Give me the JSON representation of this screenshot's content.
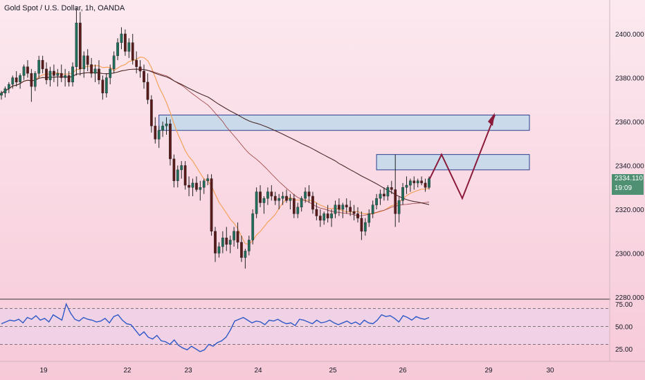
{
  "chart_data": {
    "title": "Gold Spot / U.S. Dollar, 1h, OANDA",
    "type": "candlestick",
    "price_axis": {
      "ticks": [
        "2400.000",
        "2380.000",
        "2360.000",
        "2340.000",
        "2320.000",
        "2300.000",
        "2280.000"
      ],
      "ylim": [
        2280,
        2412
      ]
    },
    "time_axis": {
      "ticks": [
        "19",
        "22",
        "23",
        "24",
        "25",
        "26",
        "29",
        "30"
      ]
    },
    "last_price": {
      "value": "2334.110",
      "countdown": "19:09"
    },
    "zones": [
      {
        "name": "upper-supply-zone",
        "from": 2356,
        "to": 2363
      },
      {
        "name": "lower-supply-zone",
        "from": 2338,
        "to": 2345
      }
    ],
    "projection": [
      2334,
      2345,
      2325,
      2363
    ],
    "rsi": {
      "ticks": [
        "75.00",
        "50.00",
        "25.00"
      ],
      "levels": [
        70,
        50,
        30
      ],
      "values": [
        53,
        55,
        57,
        56,
        58,
        54,
        60,
        58,
        62,
        57,
        59,
        55,
        63,
        60,
        57,
        75,
        65,
        58,
        56,
        60,
        58,
        57,
        55,
        56,
        59,
        54,
        61,
        63,
        57,
        53,
        52,
        46,
        40,
        44,
        38,
        36,
        40,
        34,
        33,
        30,
        35,
        29,
        26,
        24,
        28,
        25,
        22,
        24,
        30,
        28,
        32,
        34,
        38,
        46,
        56,
        58,
        60,
        57,
        54,
        56,
        55,
        52,
        57,
        56,
        58,
        55,
        53,
        54,
        51,
        58,
        57,
        55,
        53,
        57,
        54,
        55,
        57,
        54,
        52,
        54,
        56,
        53,
        55,
        52,
        57,
        54,
        53,
        57,
        63,
        61,
        62,
        59,
        55,
        62,
        60,
        57,
        61,
        59,
        58,
        60
      ]
    },
    "candles": [
      [
        2372,
        2374,
        2370,
        2373
      ],
      [
        2373,
        2376,
        2371,
        2375
      ],
      [
        2375,
        2378,
        2373,
        2377
      ],
      [
        2377,
        2381,
        2375,
        2380
      ],
      [
        2380,
        2383,
        2376,
        2378
      ],
      [
        2378,
        2382,
        2375,
        2381
      ],
      [
        2381,
        2386,
        2379,
        2385
      ],
      [
        2385,
        2388,
        2380,
        2382
      ],
      [
        2382,
        2384,
        2369,
        2376
      ],
      [
        2376,
        2383,
        2374,
        2382
      ],
      [
        2382,
        2390,
        2380,
        2388
      ],
      [
        2388,
        2390,
        2382,
        2384
      ],
      [
        2384,
        2387,
        2377,
        2379
      ],
      [
        2379,
        2385,
        2376,
        2383
      ],
      [
        2383,
        2386,
        2378,
        2381
      ],
      [
        2381,
        2384,
        2376,
        2382
      ],
      [
        2382,
        2386,
        2378,
        2380
      ],
      [
        2380,
        2384,
        2376,
        2381
      ],
      [
        2381,
        2383,
        2376,
        2378
      ],
      [
        2378,
        2387,
        2376,
        2385
      ],
      [
        2385,
        2412,
        2381,
        2405
      ],
      [
        2405,
        2410,
        2381,
        2384
      ],
      [
        2384,
        2392,
        2380,
        2390
      ],
      [
        2390,
        2393,
        2383,
        2386
      ],
      [
        2386,
        2389,
        2380,
        2382
      ],
      [
        2382,
        2386,
        2378,
        2384
      ],
      [
        2384,
        2388,
        2377,
        2379
      ],
      [
        2379,
        2381,
        2370,
        2373
      ],
      [
        2373,
        2382,
        2371,
        2380
      ],
      [
        2380,
        2386,
        2377,
        2384
      ],
      [
        2384,
        2392,
        2382,
        2390
      ],
      [
        2390,
        2398,
        2388,
        2396
      ],
      [
        2396,
        2403,
        2393,
        2400
      ],
      [
        2400,
        2402,
        2390,
        2392
      ],
      [
        2392,
        2398,
        2389,
        2396
      ],
      [
        2396,
        2400,
        2386,
        2388
      ],
      [
        2388,
        2392,
        2382,
        2385
      ],
      [
        2385,
        2388,
        2380,
        2383
      ],
      [
        2383,
        2386,
        2375,
        2378
      ],
      [
        2378,
        2382,
        2368,
        2370
      ],
      [
        2370,
        2372,
        2355,
        2358
      ],
      [
        2358,
        2362,
        2350,
        2352
      ],
      [
        2352,
        2358,
        2348,
        2356
      ],
      [
        2356,
        2360,
        2353,
        2358
      ],
      [
        2358,
        2362,
        2354,
        2359
      ],
      [
        2359,
        2361,
        2340,
        2343
      ],
      [
        2343,
        2345,
        2330,
        2333
      ],
      [
        2333,
        2340,
        2330,
        2338
      ],
      [
        2338,
        2342,
        2334,
        2340
      ],
      [
        2340,
        2342,
        2329,
        2331
      ],
      [
        2331,
        2335,
        2326,
        2330
      ],
      [
        2330,
        2334,
        2326,
        2332
      ],
      [
        2332,
        2335,
        2328,
        2329
      ],
      [
        2329,
        2333,
        2324,
        2330
      ],
      [
        2330,
        2334,
        2327,
        2333
      ],
      [
        2333,
        2336,
        2331,
        2334
      ],
      [
        2334,
        2336,
        2308,
        2310
      ],
      [
        2310,
        2312,
        2296,
        2300
      ],
      [
        2300,
        2305,
        2298,
        2303
      ],
      [
        2303,
        2310,
        2300,
        2307
      ],
      [
        2307,
        2312,
        2301,
        2304
      ],
      [
        2304,
        2308,
        2300,
        2306
      ],
      [
        2306,
        2312,
        2303,
        2310
      ],
      [
        2310,
        2314,
        2302,
        2305
      ],
      [
        2305,
        2308,
        2296,
        2298
      ],
      [
        2298,
        2302,
        2293,
        2301
      ],
      [
        2301,
        2308,
        2299,
        2306
      ],
      [
        2306,
        2320,
        2304,
        2318
      ],
      [
        2318,
        2330,
        2316,
        2328
      ],
      [
        2328,
        2331,
        2321,
        2323
      ],
      [
        2323,
        2326,
        2318,
        2325
      ],
      [
        2325,
        2330,
        2322,
        2328
      ],
      [
        2328,
        2331,
        2324,
        2326
      ],
      [
        2326,
        2328,
        2322,
        2324
      ],
      [
        2324,
        2327,
        2320,
        2325
      ],
      [
        2325,
        2328,
        2322,
        2326
      ],
      [
        2326,
        2329,
        2323,
        2324
      ],
      [
        2324,
        2327,
        2320,
        2325
      ],
      [
        2325,
        2327,
        2316,
        2318
      ],
      [
        2318,
        2323,
        2316,
        2321
      ],
      [
        2321,
        2326,
        2319,
        2325
      ],
      [
        2325,
        2330,
        2323,
        2328
      ],
      [
        2328,
        2331,
        2323,
        2326
      ],
      [
        2326,
        2328,
        2318,
        2320
      ],
      [
        2320,
        2323,
        2315,
        2317
      ],
      [
        2317,
        2320,
        2312,
        2315
      ],
      [
        2315,
        2319,
        2313,
        2318
      ],
      [
        2318,
        2322,
        2314,
        2316
      ],
      [
        2316,
        2320,
        2312,
        2318
      ],
      [
        2318,
        2324,
        2316,
        2322
      ],
      [
        2322,
        2325,
        2317,
        2320
      ],
      [
        2320,
        2323,
        2316,
        2322
      ],
      [
        2322,
        2325,
        2318,
        2321
      ],
      [
        2321,
        2324,
        2317,
        2319
      ],
      [
        2319,
        2322,
        2315,
        2318
      ],
      [
        2318,
        2321,
        2314,
        2316
      ],
      [
        2316,
        2319,
        2306,
        2310
      ],
      [
        2310,
        2316,
        2308,
        2314
      ],
      [
        2314,
        2320,
        2312,
        2318
      ],
      [
        2318,
        2324,
        2316,
        2322
      ],
      [
        2322,
        2327,
        2320,
        2325
      ],
      [
        2325,
        2329,
        2322,
        2327
      ],
      [
        2327,
        2330,
        2324,
        2326
      ],
      [
        2326,
        2331,
        2324,
        2330
      ],
      [
        2330,
        2333,
        2327,
        2329
      ],
      [
        2329,
        2345,
        2312,
        2318
      ],
      [
        2318,
        2326,
        2314,
        2324
      ],
      [
        2324,
        2332,
        2322,
        2330
      ],
      [
        2330,
        2335,
        2327,
        2331
      ],
      [
        2331,
        2334,
        2328,
        2333
      ],
      [
        2333,
        2335,
        2329,
        2332
      ],
      [
        2332,
        2334,
        2330,
        2333
      ],
      [
        2333,
        2335,
        2331,
        2332
      ],
      [
        2332,
        2334,
        2328,
        2330
      ],
      [
        2330,
        2335,
        2329,
        2334
      ]
    ]
  }
}
